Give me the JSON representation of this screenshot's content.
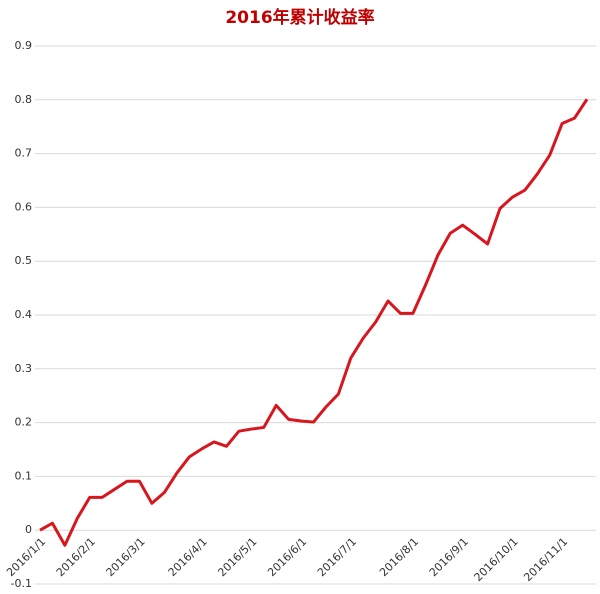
{
  "chart_data": {
    "type": "line",
    "title": "2016年累计收益率",
    "categories": [
      "2016/1/1",
      null,
      null,
      null,
      "2016/2/1",
      null,
      null,
      null,
      "2016/3/1",
      null,
      null,
      null,
      null,
      "2016/4/1",
      null,
      null,
      null,
      "2016/5/1",
      null,
      null,
      null,
      "2016/6/1",
      null,
      null,
      null,
      "2016/7/1",
      null,
      null,
      null,
      null,
      "2016/8/1",
      null,
      null,
      null,
      "2016/9/1",
      null,
      null,
      null,
      "2016/10/1",
      null,
      null,
      null,
      "2016/11/1",
      null,
      null
    ],
    "series": [
      {
        "name": "2016年累计收益率",
        "color": "#d7161e",
        "values": [
          0,
          0.013,
          -0.028,
          0.022,
          0.061,
          0.061,
          0.076,
          0.091,
          0.091,
          0.05,
          0.07,
          0.106,
          0.136,
          0.151,
          0.164,
          0.156,
          0.184,
          0.188,
          0.191,
          0.232,
          0.206,
          0.203,
          0.201,
          0.229,
          0.253,
          0.32,
          0.357,
          0.387,
          0.426,
          0.403,
          0.403,
          0.455,
          0.511,
          0.552,
          0.567,
          0.55,
          0.532,
          0.598,
          0.619,
          0.632,
          0.662,
          0.697,
          0.756,
          0.766,
          0.801
        ]
      }
    ],
    "ylim": [
      -0.1,
      0.9
    ],
    "yticks": [
      -0.1,
      0,
      0.1,
      0.2,
      0.3,
      0.4,
      0.5,
      0.6,
      0.7,
      0.8,
      0.9
    ],
    "grid": true
  }
}
